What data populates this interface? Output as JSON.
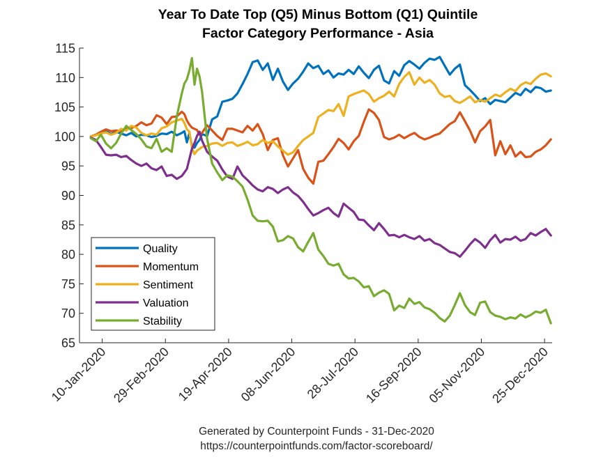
{
  "chart_data": {
    "type": "line",
    "title": [
      "Year To Date Top (Q5) Minus Bottom (Q1) Quintile",
      "Factor Category Performance - Asia"
    ],
    "xlabel": "",
    "ylabel": "",
    "ylim": [
      65,
      115
    ],
    "yticks": [
      65,
      70,
      75,
      80,
      85,
      90,
      95,
      100,
      105,
      110,
      115
    ],
    "x_unit": "day of year 2020 (0 = 01-Jan-2020)",
    "xlim": [
      -9,
      365
    ],
    "xticks": [
      {
        "day": 9,
        "label": "10-Jan-2020"
      },
      {
        "day": 59,
        "label": "29-Feb-2020"
      },
      {
        "day": 109,
        "label": "19-Apr-2020"
      },
      {
        "day": 159,
        "label": "08-Jun-2020"
      },
      {
        "day": 209,
        "label": "28-Jul-2020"
      },
      {
        "day": 259,
        "label": "16-Sep-2020"
      },
      {
        "day": 309,
        "label": "05-Nov-2020"
      },
      {
        "day": 359,
        "label": "25-Dec-2020"
      }
    ],
    "grid": false,
    "legend_position": "bottom-left",
    "x": [
      0,
      4,
      8,
      12,
      16,
      20,
      24,
      28,
      32,
      36,
      40,
      44,
      48,
      52,
      56,
      60,
      64,
      68,
      72,
      74,
      76,
      78,
      80,
      82,
      84,
      86,
      88,
      92,
      96,
      100,
      104,
      108,
      112,
      116,
      120,
      124,
      128,
      132,
      136,
      140,
      144,
      148,
      152,
      156,
      160,
      164,
      168,
      172,
      176,
      180,
      184,
      188,
      192,
      196,
      200,
      204,
      208,
      212,
      216,
      220,
      224,
      228,
      232,
      236,
      240,
      244,
      248,
      252,
      256,
      260,
      264,
      268,
      272,
      276,
      280,
      284,
      288,
      292,
      296,
      300,
      304,
      308,
      312,
      316,
      320,
      324,
      328,
      332,
      336,
      340,
      344,
      348,
      352,
      356,
      360,
      364
    ],
    "series": [
      {
        "name": "Quality",
        "color": "#0072BD",
        "values": [
          100.0,
          100.3,
          100.6,
          100.9,
          100.4,
          100.8,
          100.5,
          100.2,
          100.6,
          100.0,
          100.3,
          100.2,
          99.9,
          100.1,
          100.5,
          100.4,
          100.8,
          100.2,
          100.6,
          100.9,
          99.0,
          100.6,
          98.4,
          98.1,
          98.9,
          99.4,
          100.4,
          100.1,
          102.9,
          103.4,
          105.9,
          106.1,
          106.4,
          107.3,
          108.9,
          110.6,
          112.6,
          112.9,
          111.3,
          112.4,
          109.6,
          111.5,
          109.3,
          107.9,
          109.0,
          109.8,
          111.0,
          112.4,
          111.6,
          112.0,
          110.6,
          111.2,
          110.0,
          110.7,
          110.5,
          111.3,
          110.6,
          111.9,
          110.8,
          109.9,
          111.3,
          112.0,
          109.5,
          109.0,
          111.1,
          110.3,
          112.1,
          112.8,
          112.2,
          111.5,
          112.5,
          113.2,
          113.0,
          113.5,
          112.0,
          110.5,
          111.5,
          112.2,
          108.7,
          107.9,
          107.0,
          106.0,
          106.5,
          105.5,
          106.2,
          106.0,
          105.8,
          106.6,
          107.4,
          107.0,
          108.1,
          107.5,
          108.4,
          108.2,
          107.6,
          107.8
        ]
      },
      {
        "name": "Momentum",
        "color": "#D95319",
        "values": [
          100.0,
          100.3,
          100.8,
          101.2,
          100.9,
          101.0,
          100.9,
          101.3,
          101.4,
          101.8,
          102.4,
          101.9,
          102.2,
          103.6,
          103.2,
          102.1,
          103.3,
          103.4,
          104.2,
          103.8,
          102.7,
          102.0,
          101.5,
          101.3,
          101.1,
          100.3,
          100.6,
          101.9,
          101.0,
          100.1,
          99.4,
          101.3,
          101.3,
          101.0,
          100.7,
          101.8,
          101.0,
          102.1,
          100.4,
          97.7,
          99.4,
          99.7,
          96.8,
          94.9,
          96.3,
          97.7,
          94.5,
          93.0,
          92.0,
          95.7,
          95.9,
          97.0,
          98.2,
          99.6,
          98.9,
          97.8,
          99.2,
          100.1,
          102.5,
          104.6,
          104.0,
          102.8,
          99.9,
          99.5,
          99.8,
          100.3,
          99.7,
          100.2,
          100.6,
          99.9,
          99.5,
          99.8,
          100.2,
          100.5,
          101.3,
          102.1,
          102.6,
          104.1,
          102.6,
          101.0,
          99.0,
          100.9,
          101.7,
          102.8,
          96.8,
          99.2,
          97.0,
          98.5,
          96.6,
          97.4,
          96.5,
          96.6,
          97.4,
          97.8,
          98.5,
          99.5
        ]
      },
      {
        "name": "Sentiment",
        "color": "#EDB120",
        "values": [
          100.0,
          100.2,
          100.5,
          100.7,
          100.3,
          100.6,
          101.3,
          101.0,
          101.8,
          101.5,
          100.6,
          100.2,
          100.5,
          100.3,
          101.4,
          101.7,
          102.4,
          102.7,
          103.0,
          102.3,
          101.2,
          100.8,
          98.1,
          97.0,
          97.6,
          97.9,
          98.2,
          98.4,
          98.8,
          98.9,
          98.4,
          98.9,
          99.0,
          98.4,
          98.7,
          99.1,
          98.5,
          98.7,
          99.4,
          98.9,
          99.2,
          98.3,
          97.6,
          96.9,
          97.3,
          98.4,
          99.4,
          100.0,
          100.6,
          103.3,
          103.9,
          104.5,
          104.3,
          105.5,
          103.5,
          106.8,
          107.2,
          107.5,
          107.8,
          107.2,
          105.9,
          106.5,
          106.9,
          107.6,
          106.8,
          108.9,
          110.1,
          110.9,
          108.8,
          110.0,
          109.1,
          109.6,
          108.8,
          107.3,
          106.7,
          106.9,
          106.0,
          105.7,
          106.2,
          106.8,
          105.8,
          106.2,
          105.9,
          106.5,
          107.1,
          106.8,
          107.5,
          108.1,
          107.7,
          108.7,
          109.2,
          108.9,
          109.8,
          110.5,
          110.7,
          110.2
        ]
      },
      {
        "name": "Valuation",
        "color": "#7E2F8E",
        "values": [
          99.8,
          99.4,
          98.2,
          96.9,
          96.8,
          96.9,
          96.5,
          96.7,
          96.0,
          95.4,
          95.0,
          95.4,
          94.6,
          94.3,
          94.9,
          93.3,
          93.5,
          92.8,
          93.3,
          93.9,
          94.5,
          96.2,
          97.9,
          98.9,
          100.1,
          100.8,
          99.3,
          97.4,
          96.6,
          95.9,
          94.4,
          93.2,
          92.8,
          94.9,
          93.4,
          92.6,
          91.7,
          91.0,
          90.7,
          91.4,
          91.1,
          90.4,
          91.0,
          91.4,
          90.5,
          89.9,
          88.9,
          87.7,
          86.6,
          87.0,
          87.5,
          87.9,
          87.0,
          86.4,
          88.6,
          87.9,
          87.2,
          85.9,
          85.8,
          84.9,
          84.1,
          85.3,
          84.3,
          83.2,
          83.3,
          82.9,
          83.3,
          82.9,
          82.6,
          83.1,
          82.3,
          82.6,
          81.9,
          81.6,
          81.0,
          80.4,
          80.2,
          79.6,
          80.6,
          81.7,
          82.6,
          82.0,
          81.1,
          82.4,
          83.3,
          82.0,
          82.6,
          82.5,
          83.0,
          82.3,
          82.6,
          83.6,
          83.2,
          83.8,
          84.3,
          83.2
        ]
      },
      {
        "name": "Stability",
        "color": "#77AC30",
        "values": [
          99.7,
          99.2,
          100.3,
          98.8,
          98.0,
          98.9,
          100.5,
          101.8,
          101.1,
          100.4,
          99.5,
          98.3,
          98.0,
          99.6,
          97.4,
          98.0,
          97.4,
          103.4,
          107.3,
          109.0,
          109.7,
          111.2,
          113.3,
          108.8,
          111.5,
          110.2,
          107.6,
          99.6,
          95.4,
          93.9,
          92.6,
          93.4,
          93.2,
          92.4,
          91.5,
          89.3,
          86.6,
          85.7,
          85.6,
          85.7,
          84.7,
          82.2,
          82.4,
          83.1,
          82.7,
          81.2,
          80.5,
          82.1,
          83.6,
          80.8,
          79.7,
          78.4,
          78.1,
          78.4,
          76.6,
          75.9,
          76.0,
          75.4,
          74.4,
          74.6,
          72.9,
          73.5,
          73.9,
          73.3,
          70.5,
          71.3,
          70.9,
          72.5,
          71.6,
          71.9,
          71.0,
          70.7,
          70.1,
          69.2,
          68.6,
          69.6,
          71.4,
          73.4,
          71.4,
          70.2,
          69.7,
          71.8,
          72.0,
          70.2,
          69.6,
          69.4,
          69.0,
          69.3,
          69.1,
          69.8,
          69.3,
          69.7,
          70.3,
          70.1,
          70.6,
          68.3
        ]
      }
    ]
  },
  "footer": {
    "line1": "Generated by Counterpoint Funds - 31-Dec-2020",
    "line2": "https://counterpointfunds.com/factor-scoreboard/"
  }
}
